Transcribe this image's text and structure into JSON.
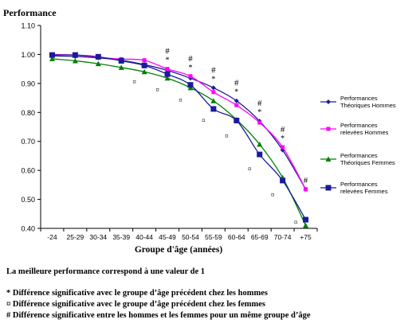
{
  "chart_data": {
    "type": "line",
    "title": "Performance",
    "xlabel": "Groupe d'âge (années)",
    "ylabel": "",
    "ylim": [
      0.4,
      1.1
    ],
    "yticks": [
      "0.40",
      "0.50",
      "0.60",
      "0.70",
      "0.80",
      "0.90",
      "1.00",
      "1.10"
    ],
    "categories": [
      "-24",
      "25-29",
      "30-34",
      "35-39",
      "40-44",
      "45-49",
      "50-54",
      "55-59",
      "60-64",
      "65-69",
      "70-74",
      "+75"
    ],
    "series": [
      {
        "name": "Performances Théoriques Hommes",
        "color": "#1f1f8f",
        "marker": "diamond",
        "values": [
          0.995,
          0.993,
          0.988,
          0.98,
          0.965,
          0.945,
          0.918,
          0.885,
          0.84,
          0.77,
          0.67,
          0.535
        ]
      },
      {
        "name": "Performances relevées Hommes",
        "color": "#ff00ff",
        "marker": "square-small",
        "values": [
          1.0,
          0.998,
          0.99,
          0.984,
          0.98,
          0.95,
          0.925,
          0.87,
          0.825,
          0.765,
          0.68,
          0.535
        ]
      },
      {
        "name": "Performances Théoriques Femmes",
        "color": "#008000",
        "marker": "triangle",
        "values": [
          0.985,
          0.978,
          0.968,
          0.955,
          0.94,
          0.918,
          0.885,
          0.84,
          0.775,
          0.69,
          0.575,
          0.41
        ]
      },
      {
        "name": "Performances relevées Femmes",
        "color": "#1a1a9a",
        "marker": "square",
        "values": [
          0.998,
          0.998,
          0.992,
          0.978,
          0.962,
          0.932,
          0.895,
          0.812,
          0.772,
          0.655,
          0.565,
          0.43
        ]
      }
    ],
    "annotations": [
      {
        "category": "45-49",
        "symbols": [
          "#",
          "*"
        ],
        "female_mark_value": 0.878
      },
      {
        "category": "50-54",
        "symbols": [
          "#",
          "*"
        ],
        "female_mark_value": 0.842
      },
      {
        "category": "55-59",
        "symbols": [
          "#",
          "*"
        ],
        "female_mark_value": 0.772
      },
      {
        "category": "60-64",
        "symbols": [
          "#",
          "*"
        ],
        "female_mark_value": 0.718
      },
      {
        "category": "65-69",
        "symbols": [
          "#",
          "*"
        ],
        "female_mark_value": 0.605
      },
      {
        "category": "70-74",
        "symbols": [
          "#",
          "*"
        ],
        "female_mark_value": 0.515
      },
      {
        "category": "+75",
        "symbols": [
          "#"
        ],
        "female_mark_value": 0.42
      },
      {
        "category": "40-44",
        "symbols": [],
        "female_mark_value": 0.905
      }
    ],
    "legend_position": "right",
    "grid": false
  },
  "notes": {
    "main": "La meilleure performance correspond à une valeur de 1",
    "male": "* Différence significative avec le groupe d’âge précédent chez les hommes",
    "female": "¤ Différence significative avec le groupe d’âge précédent chez les femmes",
    "diff": "# Différence significative entre les hommes et les femmes pour un même groupe d’âge"
  }
}
